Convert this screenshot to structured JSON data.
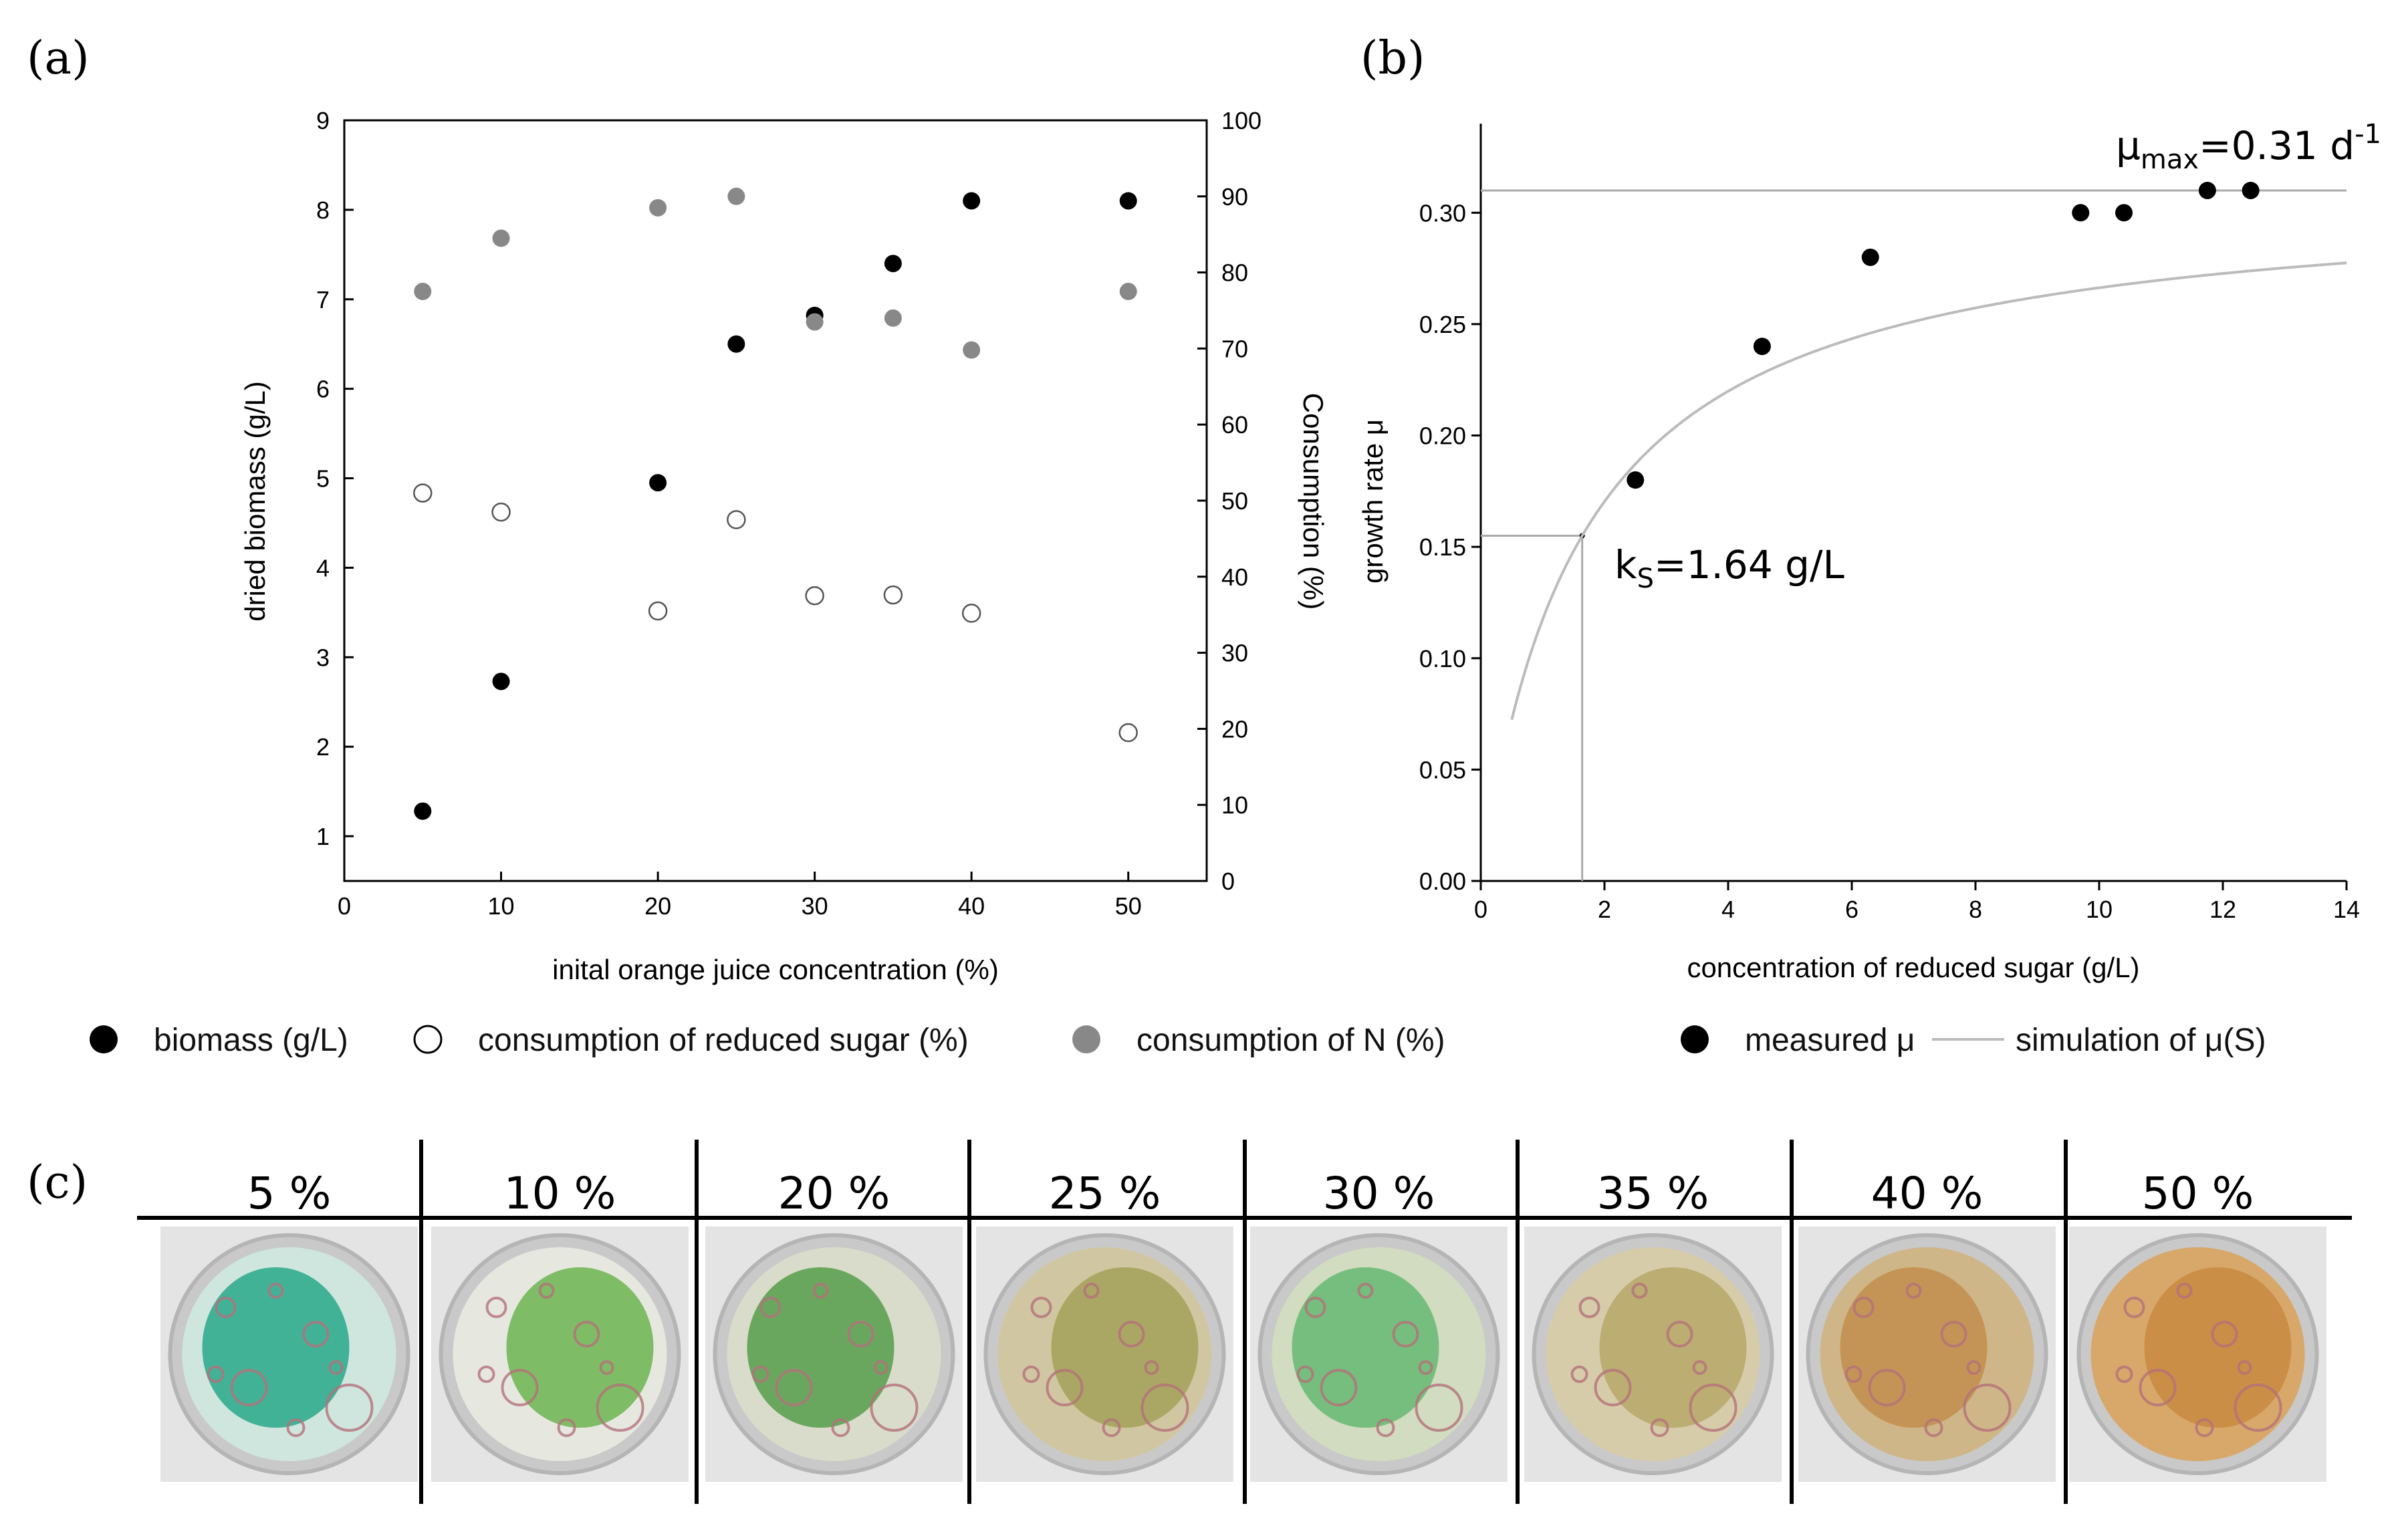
{
  "panel_labels": {
    "a": "(a)",
    "b": "(b)",
    "c": "(c)"
  },
  "chart_data": [
    {
      "id": "a",
      "type": "scatter",
      "title": "",
      "xlabel": "inital orange juice concentration (%)",
      "ylabel": "dried biomass (g/L)",
      "y2label": "Consumption (%)",
      "xlim": [
        0,
        55
      ],
      "ylim": [
        0.5,
        9
      ],
      "y2lim": [
        0,
        100
      ],
      "xticks": [
        0,
        10,
        20,
        30,
        40,
        50
      ],
      "yticks": [
        1,
        2,
        3,
        4,
        5,
        6,
        7,
        8,
        9
      ],
      "y2ticks": [
        0,
        10,
        20,
        30,
        40,
        50,
        60,
        70,
        80,
        90,
        100
      ],
      "series": [
        {
          "name": "biomass (g/L)",
          "axis": "left",
          "marker": "filled",
          "color": "#000000",
          "x": [
            5,
            10,
            20,
            25,
            30,
            35,
            40,
            50
          ],
          "values": [
            1.28,
            2.73,
            4.95,
            6.5,
            6.82,
            7.4,
            8.1,
            8.1
          ]
        },
        {
          "name": "consumption of reduced sugar (%)",
          "axis": "right",
          "marker": "open",
          "color": "#555555",
          "x": [
            5,
            10,
            20,
            25,
            30,
            35,
            40,
            50
          ],
          "values": [
            51,
            48.5,
            35.5,
            47.5,
            37.5,
            37.6,
            35.2,
            19.5
          ]
        },
        {
          "name": "consumption of N (%)",
          "axis": "right",
          "marker": "filled",
          "color": "#888888",
          "x": [
            5,
            10,
            20,
            25,
            30,
            35,
            40,
            50
          ],
          "values": [
            77.5,
            84.5,
            88.5,
            90,
            73.5,
            74,
            69.8,
            77.5
          ]
        }
      ],
      "legend": "bottom"
    },
    {
      "id": "b",
      "type": "scatter",
      "title": "",
      "xlabel": "concentration of reduced sugar (g/L)",
      "ylabel": "growth rate μ",
      "xlim": [
        0,
        14
      ],
      "ylim": [
        0,
        0.34
      ],
      "xticks": [
        0,
        2,
        4,
        6,
        8,
        10,
        12,
        14
      ],
      "yticks": [
        0.0,
        0.05,
        0.1,
        0.15,
        0.2,
        0.25,
        0.3
      ],
      "series": [
        {
          "name": "measured μ",
          "marker": "filled",
          "color": "#000000",
          "x": [
            2.5,
            4.55,
            6.3,
            9.7,
            10.4,
            11.75,
            12.45
          ],
          "values": [
            0.18,
            0.24,
            0.28,
            0.3,
            0.3,
            0.31,
            0.31
          ]
        },
        {
          "name": "simulation of μ(S)",
          "type": "line",
          "color": "#bbbbbb",
          "model": "monod",
          "mu_max": 0.31,
          "ks": 1.64,
          "x_start": 0.5,
          "x_end": 14
        }
      ],
      "reference_lines": {
        "mu_max": 0.31,
        "half_mu": 0.155,
        "ks": 1.64
      },
      "annotations": {
        "mumax_prefix": "μ",
        "mumax_sub": "max",
        "mumax_value": "=0.31 d",
        "mumax_sup": "-1",
        "ks_prefix": "k",
        "ks_sub": "S",
        "ks_value": "=1.64 g/L"
      },
      "legend": "bottom"
    }
  ],
  "legend_a": [
    {
      "label": "biomass (g/L)",
      "marker": "filled",
      "color": "#000000"
    },
    {
      "label": "consumption of reduced sugar (%)",
      "marker": "open",
      "color": "#000000"
    },
    {
      "label": "consumption of N (%)",
      "marker": "filled",
      "color": "#888888"
    }
  ],
  "legend_b": [
    {
      "label": "measured μ",
      "marker": "filled",
      "color": "#000000"
    },
    {
      "label": "simulation of μ(S)",
      "marker": "line",
      "color": "#bbbbbb"
    }
  ],
  "wells": [
    {
      "label": "5 %",
      "base": "#cfe6df",
      "patch": "#29a88a",
      "patch_opacity": 0.85
    },
    {
      "label": "10 %",
      "base": "#e6e8e0",
      "patch": "#5cad3e",
      "patch_opacity": 0.75
    },
    {
      "label": "20 %",
      "base": "#d9dcca",
      "patch": "#4e9a42",
      "patch_opacity": 0.8
    },
    {
      "label": "25 %",
      "base": "#d0c7a2",
      "patch": "#9a9a4a",
      "patch_opacity": 0.7
    },
    {
      "label": "30 %",
      "base": "#d2dcc0",
      "patch": "#4fb061",
      "patch_opacity": 0.7
    },
    {
      "label": "35 %",
      "base": "#d6ccaa",
      "patch": "#b0a05a",
      "patch_opacity": 0.7
    },
    {
      "label": "40 %",
      "base": "#cfb688",
      "patch": "#c08846",
      "patch_opacity": 0.75
    },
    {
      "label": "50 %",
      "base": "#d8a86a",
      "patch": "#c88a40",
      "patch_opacity": 0.85
    }
  ]
}
